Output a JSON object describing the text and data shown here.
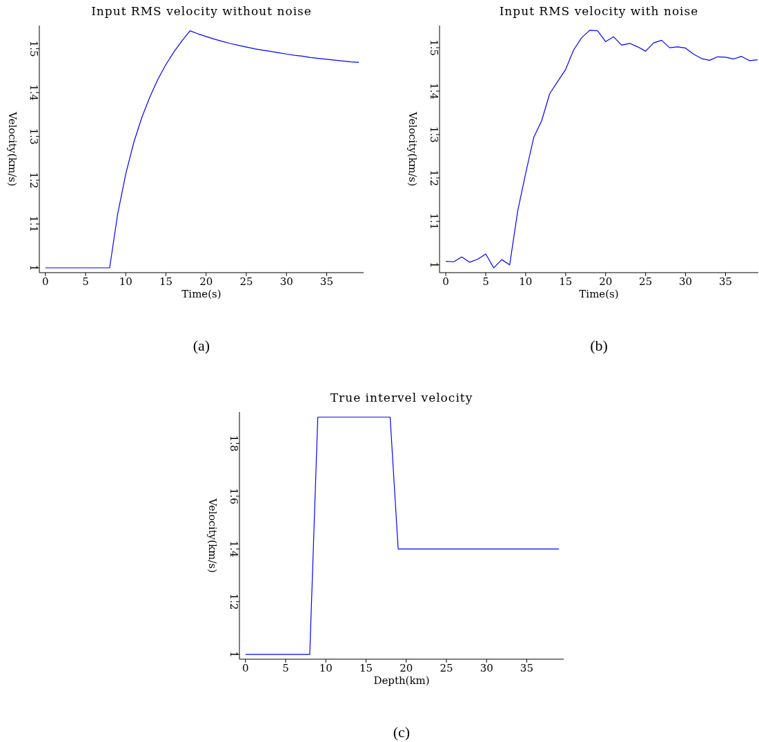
{
  "chart_data": [
    {
      "type": "line",
      "title": "Input RMS velocity without noise",
      "xlabel": "Time(s)",
      "ylabel": "Velocity(km/s)",
      "annotations": [
        "(a)"
      ],
      "color": "#0000ff",
      "xlim": [
        -0.75,
        39.6
      ],
      "ylim": [
        0.989,
        1.553
      ],
      "xticks": [
        0,
        5,
        10,
        15,
        20,
        25,
        30,
        35
      ],
      "yticks": [
        1,
        1.1,
        1.2,
        1.3,
        1.4,
        1.5
      ],
      "x": [
        0,
        1,
        2,
        3,
        4,
        5,
        6,
        7,
        8,
        9,
        10,
        11,
        12,
        13,
        14,
        15,
        16,
        17,
        18,
        19,
        20,
        21,
        22,
        23,
        24,
        25,
        26,
        27,
        28,
        29,
        30,
        31,
        32,
        33,
        34,
        35,
        36,
        37,
        38,
        39
      ],
      "values": [
        1,
        1,
        1,
        1,
        1,
        1,
        1,
        1,
        1,
        1.123,
        1.214,
        1.286,
        1.343,
        1.39,
        1.43,
        1.464,
        1.493,
        1.518,
        1.541,
        1.534,
        1.528,
        1.522,
        1.517,
        1.512,
        1.508,
        1.504,
        1.5,
        1.497,
        1.494,
        1.491,
        1.488,
        1.485,
        1.483,
        1.48,
        1.478,
        1.476,
        1.474,
        1.472,
        1.47,
        1.469
      ]
    },
    {
      "type": "line",
      "title": "Input RMS velocity with noise",
      "xlabel": "Time(s)",
      "ylabel": "Velocity(km/s)",
      "annotations": [
        "(b)"
      ],
      "color": "#0000ff",
      "xlim": [
        -0.78,
        39.1
      ],
      "ylim": [
        0.982,
        1.551
      ],
      "xticks": [
        0,
        5,
        10,
        15,
        20,
        25,
        30,
        35
      ],
      "yticks": [
        1,
        1.1,
        1.2,
        1.3,
        1.4,
        1.5
      ],
      "x": [
        0,
        1,
        2,
        3,
        4,
        5,
        6,
        7,
        8,
        9,
        10,
        11,
        12,
        13,
        14,
        15,
        16,
        17,
        18,
        19,
        20,
        21,
        22,
        23,
        24,
        25,
        26,
        27,
        28,
        29,
        30,
        31,
        32,
        33,
        34,
        35,
        36,
        37,
        38,
        39
      ],
      "values": [
        1.008,
        1.007,
        1.018,
        1.006,
        1.013,
        1.025,
        0.993,
        1.012,
        1.0,
        1.124,
        1.211,
        1.293,
        1.332,
        1.394,
        1.422,
        1.45,
        1.495,
        1.523,
        1.54,
        1.539,
        1.514,
        1.525,
        1.506,
        1.51,
        1.502,
        1.492,
        1.511,
        1.517,
        1.5,
        1.502,
        1.499,
        1.485,
        1.475,
        1.471,
        1.479,
        1.478,
        1.474,
        1.48,
        1.47,
        1.472
      ]
    },
    {
      "type": "line",
      "title": "True intervel velocity",
      "xlabel": "Depth(km)",
      "ylabel": "Velocity(km/s)",
      "annotations": [
        "(c)"
      ],
      "color": "#0000ff",
      "xlim": [
        -0.75,
        39.6
      ],
      "ylim": [
        0.982,
        1.919
      ],
      "xticks": [
        0,
        5,
        10,
        15,
        20,
        25,
        30,
        35
      ],
      "yticks": [
        1,
        1.2,
        1.4,
        1.6,
        1.8
      ],
      "x": [
        0,
        8,
        9,
        18,
        19,
        39
      ],
      "values": [
        1,
        1,
        1.9,
        1.9,
        1.4,
        1.4
      ]
    }
  ]
}
